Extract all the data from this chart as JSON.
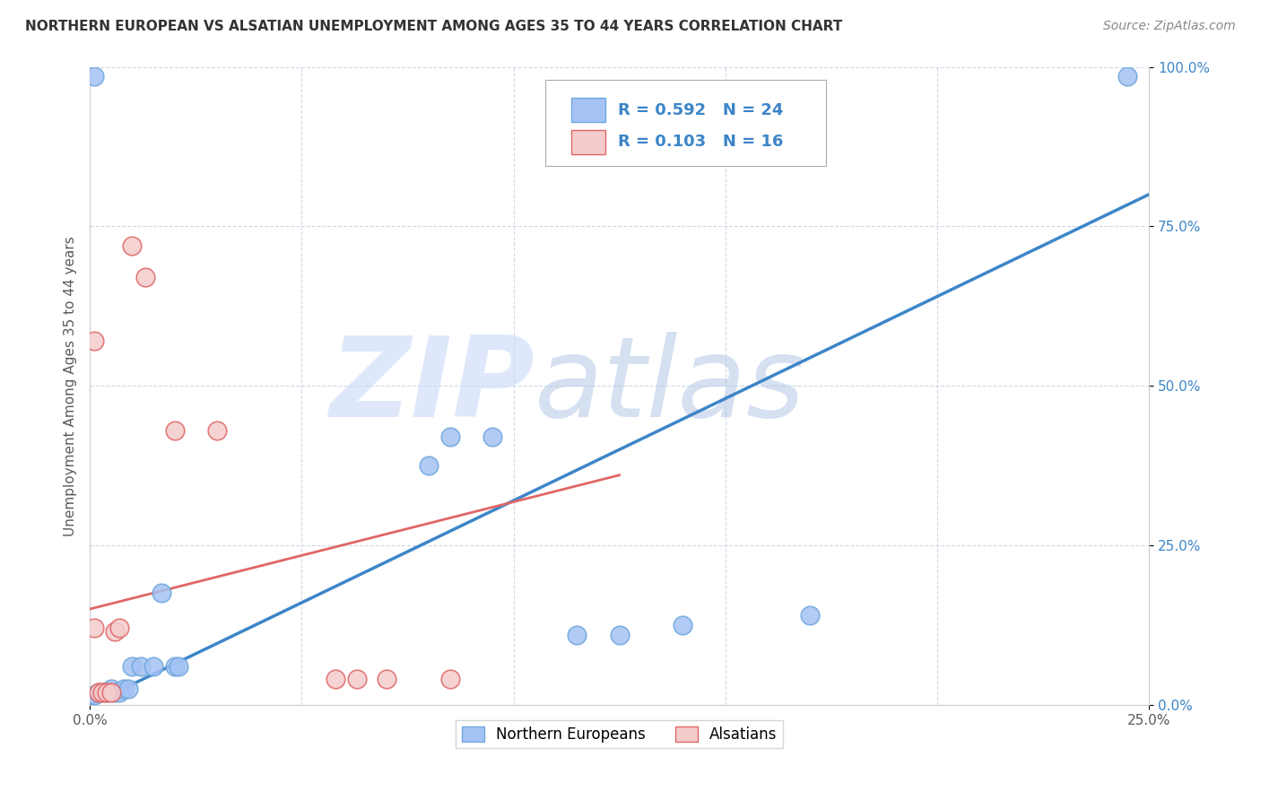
{
  "title": "NORTHERN EUROPEAN VS ALSATIAN UNEMPLOYMENT AMONG AGES 35 TO 44 YEARS CORRELATION CHART",
  "source": "Source: ZipAtlas.com",
  "ylabel": "Unemployment Among Ages 35 to 44 years",
  "xlim": [
    0.0,
    0.25
  ],
  "ylim": [
    0.0,
    1.0
  ],
  "xticks": [
    0.0,
    0.25
  ],
  "yticks": [
    0.0,
    0.25,
    0.5,
    0.75,
    1.0
  ],
  "xtick_labels_left": [
    "0.0%"
  ],
  "xtick_labels_right": [
    "25.0%"
  ],
  "ytick_labels": [
    "0.0%",
    "25.0%",
    "50.0%",
    "75.0%",
    "100.0%"
  ],
  "blue_color": "#a4c2f4",
  "pink_color": "#f4cccc",
  "blue_edge_color": "#6fa8dc",
  "pink_edge_color": "#e06666",
  "blue_line_color": "#3d85c8",
  "pink_line_color": "#e06666",
  "blue_label": "Northern Europeans",
  "pink_label": "Alsatians",
  "R_blue": "0.592",
  "N_blue": "24",
  "R_pink": "0.103",
  "N_pink": "16",
  "legend_text_color": "#3d85c8",
  "watermark_zip_color": "#c9daf8",
  "watermark_atlas_color": "#b4c7e7",
  "blue_scatter": [
    [
      0.001,
      0.985
    ],
    [
      0.245,
      0.985
    ],
    [
      0.001,
      0.015
    ],
    [
      0.002,
      0.02
    ],
    [
      0.003,
      0.02
    ],
    [
      0.004,
      0.02
    ],
    [
      0.005,
      0.025
    ],
    [
      0.006,
      0.02
    ],
    [
      0.007,
      0.02
    ],
    [
      0.008,
      0.025
    ],
    [
      0.009,
      0.025
    ],
    [
      0.01,
      0.06
    ],
    [
      0.012,
      0.06
    ],
    [
      0.015,
      0.06
    ],
    [
      0.017,
      0.175
    ],
    [
      0.02,
      0.06
    ],
    [
      0.021,
      0.06
    ],
    [
      0.08,
      0.375
    ],
    [
      0.085,
      0.42
    ],
    [
      0.095,
      0.42
    ],
    [
      0.115,
      0.11
    ],
    [
      0.125,
      0.11
    ],
    [
      0.14,
      0.125
    ],
    [
      0.17,
      0.14
    ]
  ],
  "pink_scatter": [
    [
      0.001,
      0.57
    ],
    [
      0.001,
      0.12
    ],
    [
      0.002,
      0.02
    ],
    [
      0.003,
      0.02
    ],
    [
      0.004,
      0.02
    ],
    [
      0.005,
      0.02
    ],
    [
      0.006,
      0.115
    ],
    [
      0.007,
      0.12
    ],
    [
      0.01,
      0.72
    ],
    [
      0.013,
      0.67
    ],
    [
      0.02,
      0.43
    ],
    [
      0.03,
      0.43
    ],
    [
      0.058,
      0.04
    ],
    [
      0.063,
      0.04
    ],
    [
      0.07,
      0.04
    ],
    [
      0.085,
      0.04
    ]
  ],
  "blue_line_x": [
    0.0,
    0.25
  ],
  "blue_line_y": [
    0.0,
    0.8
  ],
  "pink_line_x": [
    0.0,
    0.125
  ],
  "pink_line_y": [
    0.15,
    0.36
  ],
  "grid_xticks": [
    0.0,
    0.05,
    0.1,
    0.15,
    0.2,
    0.25
  ],
  "grid_yticks": [
    0.0,
    0.25,
    0.5,
    0.75,
    1.0
  ]
}
